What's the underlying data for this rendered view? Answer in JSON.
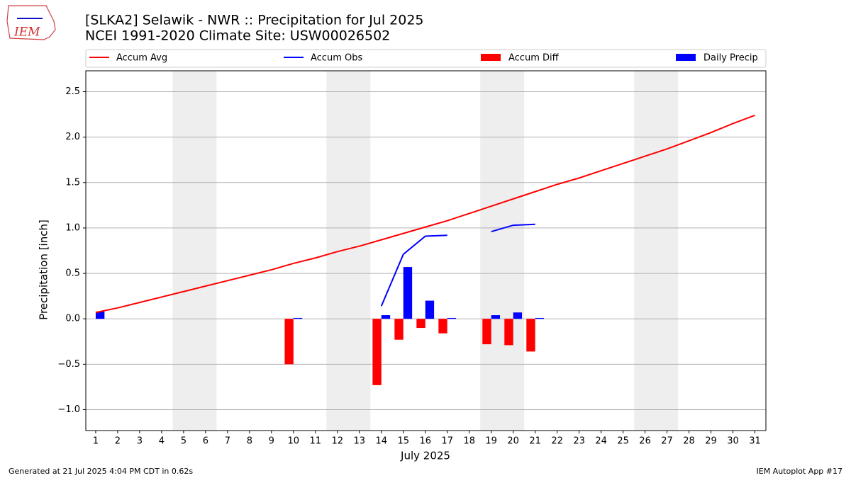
{
  "chart_data": {
    "type": "combo",
    "title": "[SLKA2] Selawik - NWR :: Precipitation for Jul 2025",
    "subtitle": "NCEI 1991-2020 Climate Site: USW00026502",
    "logo_text": "IEM",
    "x_label": "July 2025",
    "y_label": "Precipitation [inch]",
    "footer_left": "Generated at 21 Jul 2025 4:04 PM CDT in 0.62s",
    "footer_right": "IEM Autoplot App #17",
    "x": [
      1,
      2,
      3,
      4,
      5,
      6,
      7,
      8,
      9,
      10,
      11,
      12,
      13,
      14,
      15,
      16,
      17,
      18,
      19,
      20,
      21,
      22,
      23,
      24,
      25,
      26,
      27,
      28,
      29,
      30,
      31
    ],
    "xlim": [
      0.55,
      31.5
    ],
    "xticks": [
      1,
      2,
      3,
      4,
      5,
      6,
      7,
      8,
      9,
      10,
      11,
      12,
      13,
      14,
      15,
      16,
      17,
      18,
      19,
      20,
      21,
      22,
      23,
      24,
      25,
      26,
      27,
      28,
      29,
      30,
      31
    ],
    "ylim": [
      -1.23,
      2.73
    ],
    "yticks": [
      {
        "value": -1.0,
        "label": "−1.0"
      },
      {
        "value": -0.5,
        "label": "−0.5"
      },
      {
        "value": 0.0,
        "label": "0.0"
      },
      {
        "value": 0.5,
        "label": "0.5"
      },
      {
        "value": 1.0,
        "label": "1.0"
      },
      {
        "value": 1.5,
        "label": "1.5"
      },
      {
        "value": 2.0,
        "label": "2.0"
      },
      {
        "value": 2.5,
        "label": "2.5"
      }
    ],
    "grid": true,
    "shaded_spans": [
      [
        4.5,
        6.5
      ],
      [
        11.5,
        13.5
      ],
      [
        18.5,
        20.5
      ],
      [
        25.5,
        27.5
      ]
    ],
    "shade_color": "#eeeeee",
    "series": [
      {
        "name": "Accum Avg",
        "type": "line",
        "color": "#ff0000",
        "values": [
          0.07,
          0.12,
          0.18,
          0.24,
          0.3,
          0.36,
          0.42,
          0.48,
          0.54,
          0.61,
          0.67,
          0.74,
          0.8,
          0.87,
          0.94,
          1.01,
          1.08,
          1.16,
          1.24,
          1.32,
          1.4,
          1.48,
          1.55,
          1.63,
          1.71,
          1.79,
          1.87,
          1.96,
          2.05,
          2.15,
          2.24
        ]
      },
      {
        "name": "Accum Obs",
        "type": "line",
        "color": "#0000ff",
        "values": [
          null,
          null,
          null,
          null,
          null,
          null,
          null,
          null,
          null,
          null,
          null,
          null,
          null,
          0.14,
          0.71,
          0.91,
          0.92,
          null,
          0.96,
          1.03,
          1.04,
          null,
          null,
          null,
          null,
          null,
          null,
          null,
          null,
          null,
          null
        ]
      },
      {
        "name": "Accum Diff",
        "type": "bar",
        "offset": -0.2,
        "color": "#ff0000",
        "values": [
          null,
          null,
          null,
          null,
          null,
          null,
          null,
          null,
          null,
          -0.5,
          null,
          null,
          null,
          -0.73,
          -0.23,
          -0.1,
          -0.16,
          null,
          -0.28,
          -0.29,
          -0.36,
          null,
          null,
          null,
          null,
          null,
          null,
          null,
          null,
          null,
          null
        ]
      },
      {
        "name": "Daily Precip",
        "type": "bar",
        "offset": 0.2,
        "color": "#0000ff",
        "values": [
          0.08,
          0,
          0,
          0,
          0,
          0,
          0,
          0,
          0,
          0.01,
          0,
          0,
          0,
          0.04,
          0.57,
          0.2,
          0.01,
          0,
          0.04,
          0.07,
          0.01,
          null,
          null,
          null,
          null,
          null,
          null,
          null,
          null,
          null,
          null
        ]
      }
    ]
  }
}
